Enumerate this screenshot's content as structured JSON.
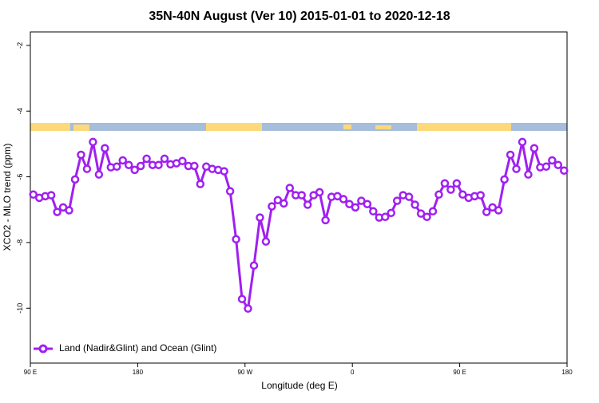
{
  "chart_data": {
    "type": "line",
    "title": "35N-40N August (Ver 10)   2015-01-01 to 2020-12-18",
    "x_label": "Longitude (deg E)",
    "y_label": "XCO2 - MLO trend (ppm)",
    "x": [
      92.5,
      97.5,
      102.5,
      107.5,
      112.5,
      117.5,
      122.5,
      127.5,
      132.5,
      137.5,
      142.5,
      147.5,
      152.5,
      157.5,
      162.5,
      167.5,
      172.5,
      177.5,
      182.5,
      187.5,
      192.5,
      197.5,
      202.5,
      207.5,
      212.5,
      217.5,
      222.5,
      227.5,
      232.5,
      237.5,
      242.5,
      247.5,
      252.5,
      257.5,
      262.5,
      267.5,
      272.5,
      277.5,
      282.5,
      287.5,
      292.5,
      297.5,
      302.5,
      307.5,
      312.5,
      317.5,
      322.5,
      327.5,
      332.5,
      337.5,
      342.5,
      347.5,
      352.5,
      357.5,
      362.5,
      367.5,
      372.5,
      377.5,
      382.5,
      387.5,
      392.5,
      397.5,
      402.5,
      407.5,
      412.5,
      417.5,
      422.5,
      427.5,
      432.5,
      437.5,
      442.5,
      447.5,
      452.5,
      457.5,
      462.5,
      467.5,
      472.5,
      477.5,
      482.5,
      487.5,
      492.5,
      497.5,
      502.5,
      507.5,
      512.5,
      517.5,
      522.5,
      527.5,
      532.5,
      537.5
    ],
    "series": [
      {
        "name": "Land (Nadir&Glint) and Ocean (Glint)",
        "color": "#a020f0",
        "values": [
          -6.54,
          -6.64,
          -6.59,
          -6.56,
          -7.07,
          -6.93,
          -7.02,
          -6.08,
          -5.33,
          -5.76,
          -4.94,
          -5.93,
          -5.13,
          -5.71,
          -5.69,
          -5.5,
          -5.64,
          -5.79,
          -5.67,
          -5.45,
          -5.64,
          -5.64,
          -5.45,
          -5.62,
          -5.59,
          -5.52,
          -5.67,
          -5.67,
          -6.22,
          -5.69,
          -5.76,
          -5.79,
          -5.83,
          -6.44,
          -7.9,
          -9.72,
          -10.01,
          -8.7,
          -7.24,
          -7.97,
          -6.9,
          -6.71,
          -6.81,
          -6.34,
          -6.56,
          -6.56,
          -6.85,
          -6.56,
          -6.47,
          -7.32,
          -6.61,
          -6.59,
          -6.68,
          -6.83,
          -6.93,
          -6.73,
          -6.83,
          -7.05,
          -7.24,
          -7.22,
          -7.1,
          -6.73,
          -6.56,
          -6.61,
          -6.85,
          -7.12,
          -7.22,
          -7.05,
          -6.54,
          -6.2,
          -6.39,
          -6.2,
          -6.54,
          -6.64,
          -6.59,
          -6.56,
          -7.07,
          -6.93,
          -7.02,
          -6.08,
          -5.33,
          -5.76,
          -4.94,
          -5.93,
          -5.13,
          -5.71,
          -5.69,
          -5.5,
          -5.64,
          -5.81
        ]
      }
    ],
    "xlim": [
      90,
      540
    ],
    "xticks": [
      {
        "value": 90,
        "label": "90 E"
      },
      {
        "value": 180,
        "label": "180"
      },
      {
        "value": 270,
        "label": "90 W"
      },
      {
        "value": 360,
        "label": "0"
      },
      {
        "value": 450,
        "label": "90 E"
      },
      {
        "value": 540,
        "label": "180"
      }
    ],
    "ylim": [
      -11.67,
      -1.59
    ],
    "yticks": [
      -2,
      -4,
      -6,
      -8,
      -10
    ],
    "legend": "bottom-left"
  }
}
